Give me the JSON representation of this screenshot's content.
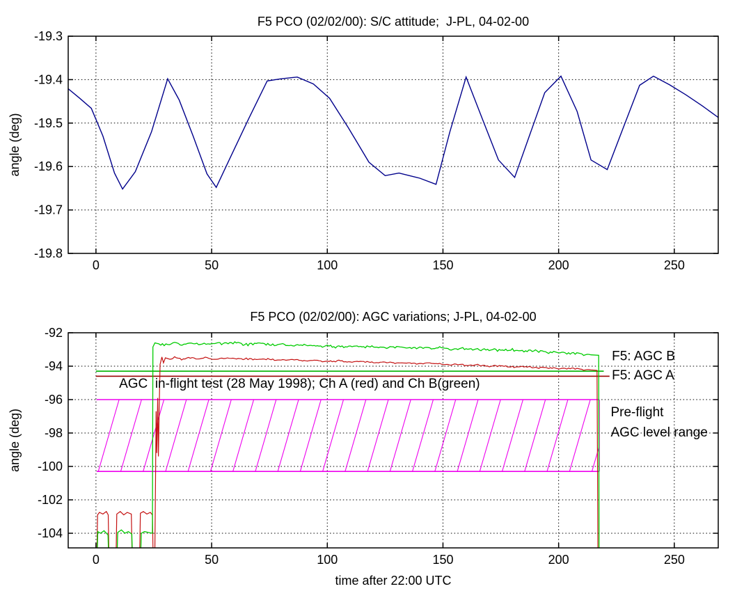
{
  "figure": {
    "background": "#ffffff",
    "axis_color": "#000000",
    "grid_color": "#000000"
  },
  "chart_data": [
    {
      "id": "attitude",
      "type": "line",
      "title": "F5 PCO (02/02/00): S/C attitude;  J-PL, 04-02-00",
      "xlabel": "",
      "ylabel": "angle (deg)",
      "xlim": [
        -12,
        269
      ],
      "ylim": [
        -19.8,
        -19.3
      ],
      "xticks": [
        0,
        50,
        100,
        150,
        200,
        250
      ],
      "xtick_labels": [
        "0",
        "50",
        "100",
        "150",
        "200",
        "250"
      ],
      "yticks": [
        -19.3,
        -19.4,
        -19.5,
        -19.6,
        -19.7,
        -19.8
      ],
      "ytick_labels": [
        "-19.3",
        "-19.4",
        "-19.5",
        "-19.6",
        "-19.7",
        "-19.8"
      ],
      "grid": true,
      "series": [
        {
          "name": "sc-attitude-angle",
          "color": "#00008B",
          "width": 1.4,
          "x": [
            -12,
            -7,
            -2,
            3,
            8,
            11.5,
            17,
            24,
            31,
            36,
            42,
            48,
            52,
            58,
            66,
            74,
            80,
            87,
            94,
            101,
            109,
            118,
            125,
            131,
            140,
            147,
            153,
            160,
            167,
            174,
            181,
            187,
            194,
            201,
            208,
            214,
            221,
            228,
            235,
            241,
            248,
            255,
            262,
            269
          ],
          "y": [
            -19.421,
            -19.443,
            -19.466,
            -19.53,
            -19.615,
            -19.652,
            -19.612,
            -19.52,
            -19.398,
            -19.447,
            -19.53,
            -19.617,
            -19.648,
            -19.58,
            -19.49,
            -19.403,
            -19.398,
            -19.394,
            -19.41,
            -19.443,
            -19.51,
            -19.59,
            -19.621,
            -19.615,
            -19.627,
            -19.641,
            -19.52,
            -19.394,
            -19.49,
            -19.585,
            -19.625,
            -19.535,
            -19.43,
            -19.392,
            -19.473,
            -19.585,
            -19.607,
            -19.51,
            -19.413,
            -19.392,
            -19.412,
            -19.435,
            -19.46,
            -19.487
          ]
        }
      ],
      "annotations": []
    },
    {
      "id": "agc",
      "type": "line",
      "title": "F5 PCO (02/02/00): AGC variations; J-PL, 04-02-00",
      "xlabel": "time after 22:00 UTC",
      "ylabel": "angle (deg)",
      "xlim": [
        -12,
        269
      ],
      "ylim": [
        -104.875,
        -92
      ],
      "xticks": [
        0,
        50,
        100,
        150,
        200,
        250
      ],
      "xtick_labels": [
        "0",
        "50",
        "100",
        "150",
        "200",
        "250"
      ],
      "yticks": [
        -92,
        -94,
        -96,
        -98,
        -100,
        -102,
        -104
      ],
      "ytick_labels": [
        "-92",
        "-94",
        "-96",
        "-98",
        "-100",
        "-102",
        "-104"
      ],
      "grid": true,
      "hatch_region": {
        "label": "Pre-flight AGC level range",
        "x": [
          0.3,
          217.6
        ],
        "y_top": -96,
        "y_bottom": -100.3,
        "spacing": 9.7,
        "run": 9.0,
        "color": "#EE00EE"
      },
      "ref_lines": [
        {
          "name": "inflight-1998-ch-b-green-level",
          "color": "#00B300",
          "y": -94.3,
          "x": [
            0,
            219.5
          ],
          "width": 1.6
        },
        {
          "name": "inflight-1998-ch-a-red-level",
          "color": "#990000",
          "y": -94.6,
          "x": [
            0,
            222
          ],
          "width": 1.6
        }
      ],
      "series": [
        {
          "name": "agc-ch-a-red",
          "color": "#C41111",
          "width": 1.2,
          "noise": {
            "amp": 0.055,
            "min_x": 30.5,
            "max_x": 216.4,
            "step": 0.7
          },
          "x": [
            0.3,
            0.7,
            1.5,
            3,
            4.5,
            5.3,
            5.7,
            8.6,
            9.0,
            10.5,
            12,
            13.5,
            15.3,
            15.7,
            18.8,
            19.2,
            20.5,
            22,
            23.5,
            24.4,
            24.8,
            25.4,
            25.7,
            26.0,
            26.3,
            26.7,
            27.0,
            27.4,
            27.7,
            28.5,
            29.2,
            30,
            32,
            34,
            37,
            40,
            44,
            48,
            52,
            56,
            60,
            65,
            70,
            75,
            80,
            85,
            90,
            95,
            100,
            105,
            110,
            115,
            120,
            125,
            130,
            135,
            140,
            145,
            150,
            155,
            160,
            165,
            170,
            175,
            180,
            185,
            190,
            195,
            200,
            205,
            210,
            214,
            216.6,
            216.8,
            217.0
          ],
          "y": [
            -106,
            -102.9,
            -102.75,
            -102.85,
            -102.7,
            -102.9,
            -106,
            -106,
            -102.85,
            -102.7,
            -102.9,
            -102.75,
            -102.85,
            -106,
            -106,
            -102.8,
            -102.7,
            -102.85,
            -102.75,
            -102.9,
            -106,
            -106,
            -101.6,
            -96.7,
            -99.2,
            -95.9,
            -99.4,
            -96.0,
            -93.9,
            -93.45,
            -93.8,
            -93.5,
            -93.6,
            -93.45,
            -93.6,
            -93.5,
            -93.55,
            -93.5,
            -93.6,
            -93.52,
            -93.58,
            -93.55,
            -93.62,
            -93.58,
            -93.65,
            -93.6,
            -93.68,
            -93.65,
            -93.72,
            -93.68,
            -93.75,
            -93.72,
            -93.78,
            -93.75,
            -93.82,
            -93.8,
            -93.85,
            -93.82,
            -93.9,
            -93.88,
            -93.95,
            -93.92,
            -94.0,
            -93.98,
            -94.05,
            -94.02,
            -94.1,
            -94.08,
            -94.15,
            -94.12,
            -94.2,
            -94.22,
            -94.25,
            -99.7,
            -106
          ]
        },
        {
          "name": "agc-ch-b-green",
          "color": "#00CC00",
          "width": 1.3,
          "noise": {
            "amp": 0.09,
            "min_x": 25.2,
            "max_x": 217.2,
            "step": 0.7
          },
          "x": [
            0.4,
            0.8,
            2,
            3.5,
            5.2,
            5.6,
            9.0,
            9.4,
            11,
            12.5,
            14,
            15.5,
            15.9,
            19.2,
            19.6,
            21,
            22.5,
            24.4,
            24.6,
            25.5,
            28,
            31,
            34,
            38,
            42,
            46,
            50,
            55,
            60,
            65,
            70,
            75,
            80,
            85,
            90,
            95,
            100,
            105,
            110,
            115,
            120,
            125,
            130,
            135,
            140,
            145,
            150,
            155,
            160,
            165,
            170,
            175,
            180,
            185,
            190,
            195,
            200,
            205,
            210,
            214,
            217.3,
            217.5
          ],
          "y": [
            -106,
            -103.9,
            -104.0,
            -103.85,
            -104.1,
            -106,
            -106,
            -103.95,
            -103.8,
            -104.0,
            -103.9,
            -104.05,
            -106,
            -106,
            -104.0,
            -103.9,
            -103.95,
            -104.0,
            -92.85,
            -92.62,
            -92.7,
            -92.75,
            -92.6,
            -92.72,
            -92.65,
            -92.7,
            -92.6,
            -92.65,
            -92.6,
            -92.7,
            -92.65,
            -92.72,
            -92.7,
            -92.78,
            -92.72,
            -92.8,
            -92.78,
            -92.85,
            -92.8,
            -92.85,
            -92.82,
            -92.88,
            -92.85,
            -92.9,
            -92.88,
            -92.95,
            -92.9,
            -92.98,
            -92.95,
            -93.0,
            -93.0,
            -93.05,
            -93.02,
            -93.1,
            -93.08,
            -93.15,
            -93.18,
            -93.22,
            -93.28,
            -93.32,
            -93.35,
            -106
          ]
        }
      ],
      "annotations": [
        {
          "name": "inflight-test-note",
          "text": "AGC  in-flight test (28 May 1998); Ch A (red) and Ch B(green)",
          "x": 10,
          "y": -95.05,
          "anchor": "start"
        },
        {
          "name": "f5-agc-b-label",
          "text": "F5: AGC B",
          "x": 223,
          "y": -93.4,
          "anchor": "start"
        },
        {
          "name": "f5-agc-a-label",
          "text": "F5: AGC A",
          "x": 223,
          "y": -94.55,
          "anchor": "start"
        },
        {
          "name": "preflight-label-line1",
          "text": "Pre-flight",
          "x": 222.5,
          "y": -96.75,
          "anchor": "start"
        },
        {
          "name": "preflight-label-line2",
          "text": "AGC level range",
          "x": 222.5,
          "y": -97.95,
          "anchor": "start"
        }
      ]
    }
  ]
}
